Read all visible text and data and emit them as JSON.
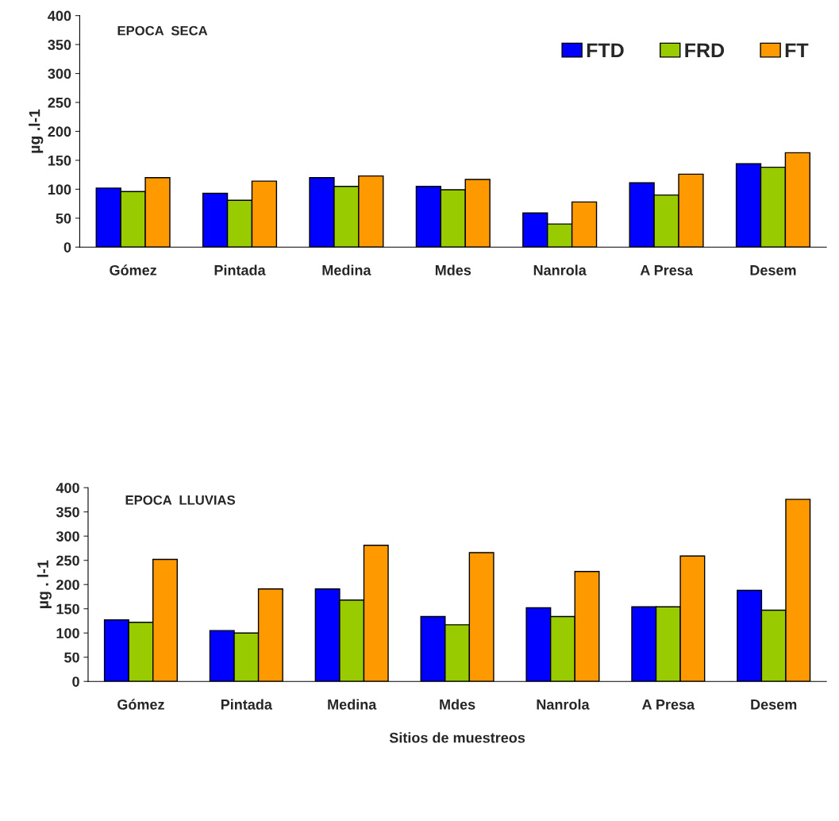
{
  "chart_data": [
    {
      "type": "bar",
      "title": "EPOCA  SECA",
      "ylabel": "µg .l-1",
      "categories": [
        "Gómez",
        "Pintada",
        "Medina",
        "Mdes",
        "Nanrola",
        "A Presa",
        "Desem"
      ],
      "series": [
        {
          "name": "FTD",
          "color": "#0000ff",
          "values": [
            102,
            93,
            120,
            105,
            59,
            111,
            144
          ]
        },
        {
          "name": "FRD",
          "color": "#99cc00",
          "values": [
            96,
            81,
            105,
            99,
            40,
            90,
            138
          ]
        },
        {
          "name": "FT",
          "color": "#ff9900",
          "values": [
            120,
            114,
            123,
            117,
            78,
            126,
            163
          ]
        }
      ],
      "ylim": [
        0,
        400
      ],
      "yticks": [
        0,
        50,
        100,
        150,
        200,
        250,
        300,
        350,
        400
      ],
      "grid": false,
      "legend": "top right"
    },
    {
      "type": "bar",
      "title": "EPOCA  LLUVIAS",
      "ylabel": "µg . l-1",
      "xlabel": "Sitios de muestreos",
      "categories": [
        "Gómez",
        "Pintada",
        "Medina",
        "Mdes",
        "Nanrola",
        "A Presa",
        "Desem"
      ],
      "series": [
        {
          "color": "#0000ff",
          "values": [
            127,
            105,
            191,
            134,
            152,
            154,
            188
          ]
        },
        {
          "color": "#99cc00",
          "values": [
            122,
            100,
            168,
            117,
            134,
            154,
            147
          ]
        },
        {
          "color": "#ff9900",
          "values": [
            252,
            191,
            281,
            266,
            227,
            259,
            376
          ]
        }
      ],
      "ylim": [
        0,
        400
      ],
      "yticks": [
        0,
        50,
        100,
        150,
        200,
        250,
        300,
        350,
        400
      ],
      "grid": false,
      "legend": false
    }
  ]
}
